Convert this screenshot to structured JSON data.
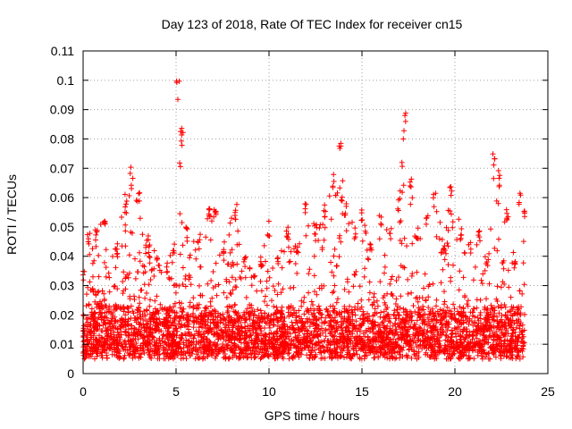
{
  "chart_data": {
    "type": "scatter",
    "title": "Day 123 of 2018, Rate Of TEC Index for receiver cn15",
    "xlabel": "GPS time / hours",
    "ylabel": "ROTI / TECUs",
    "xlim": [
      0,
      25
    ],
    "ylim": [
      0,
      0.11
    ],
    "x_ticks": [
      0,
      5,
      10,
      15,
      20,
      25
    ],
    "x_tick_labels": [
      "0",
      "5",
      "10",
      "15",
      "20",
      "25"
    ],
    "y_ticks": [
      0,
      0.01,
      0.02,
      0.03,
      0.04,
      0.05,
      0.06,
      0.07,
      0.08,
      0.09,
      0.1,
      0.11
    ],
    "y_tick_labels": [
      "0",
      "0.01",
      "0.02",
      "0.03",
      "0.04",
      "0.05",
      "0.06",
      "0.07",
      "0.08",
      "0.09",
      "0.1",
      "0.11"
    ],
    "grid": true,
    "marker": "+",
    "color": "#ff0000",
    "series": [
      {
        "name": "ROTI",
        "x_range": [
          0,
          23.75
        ],
        "baseline_range": [
          0.005,
          0.02
        ],
        "envelope_x": [
          0,
          0.3,
          0.7,
          1.2,
          1.8,
          2.3,
          2.6,
          3.0,
          3.5,
          4.0,
          4.5,
          4.9,
          5.1,
          5.3,
          5.6,
          6.2,
          6.8,
          7.1,
          7.6,
          8.2,
          8.7,
          9.2,
          9.6,
          10.0,
          10.5,
          11.0,
          11.5,
          12.0,
          12.5,
          13.0,
          13.5,
          13.8,
          14.1,
          14.6,
          15.0,
          15.5,
          16.0,
          16.5,
          17.0,
          17.3,
          17.6,
          18.0,
          18.5,
          18.9,
          19.4,
          19.8,
          20.3,
          20.8,
          21.3,
          21.7,
          22.1,
          22.4,
          22.8,
          23.2,
          23.5,
          23.75
        ],
        "envelope_y": [
          0.035,
          0.048,
          0.05,
          0.055,
          0.045,
          0.063,
          0.071,
          0.062,
          0.048,
          0.04,
          0.038,
          0.045,
          0.1,
          0.084,
          0.05,
          0.046,
          0.057,
          0.058,
          0.045,
          0.058,
          0.04,
          0.035,
          0.04,
          0.052,
          0.04,
          0.05,
          0.045,
          0.06,
          0.052,
          0.058,
          0.07,
          0.08,
          0.06,
          0.05,
          0.057,
          0.045,
          0.055,
          0.05,
          0.06,
          0.089,
          0.07,
          0.05,
          0.054,
          0.062,
          0.045,
          0.065,
          0.05,
          0.045,
          0.05,
          0.04,
          0.078,
          0.07,
          0.055,
          0.04,
          0.063,
          0.058
        ],
        "point_count": 4200
      }
    ]
  }
}
